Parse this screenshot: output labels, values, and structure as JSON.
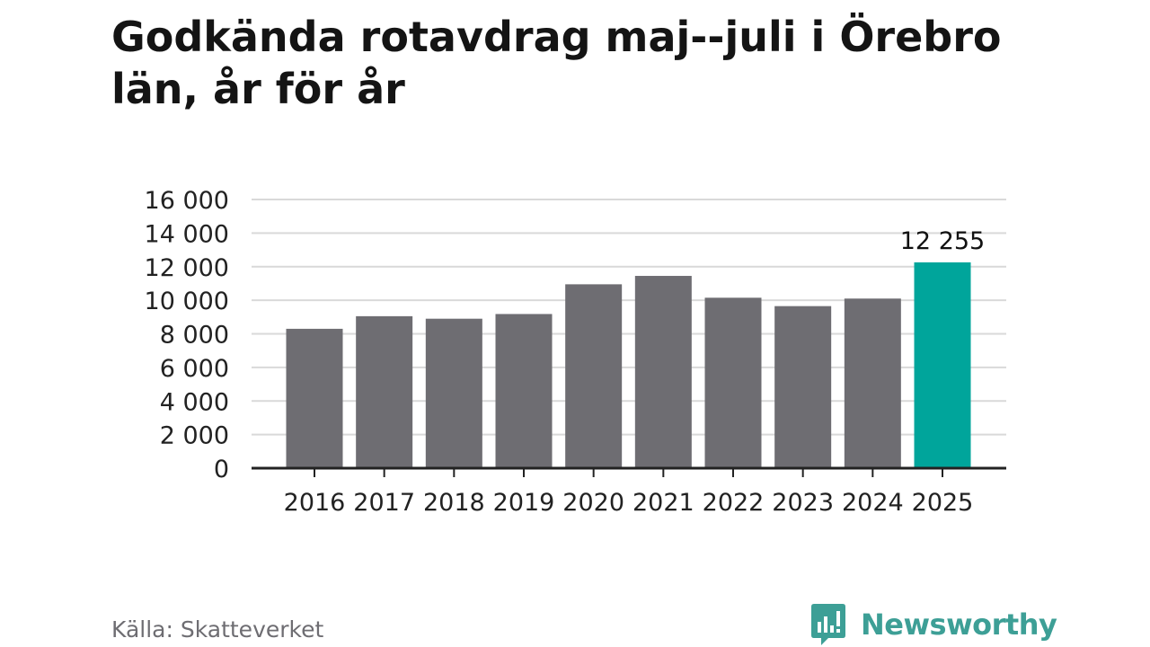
{
  "title": "Godkända rotavdrag maj--juli i Örebro län, år för år",
  "source": "Källa: Skatteverket",
  "brand": {
    "name": "Newsworthy",
    "color": "#3d9f96"
  },
  "colors": {
    "bar": "#6e6d72",
    "highlight": "#00a59b",
    "grid": "#d9d9d9",
    "axis": "#222222"
  },
  "chart_data": {
    "type": "bar",
    "categories": [
      "2016",
      "2017",
      "2018",
      "2019",
      "2020",
      "2021",
      "2022",
      "2023",
      "2024",
      "2025"
    ],
    "values": [
      8300,
      9050,
      8900,
      9180,
      10950,
      11450,
      10150,
      9650,
      10100,
      12255
    ],
    "highlight_index": 9,
    "data_labels": [
      {
        "index": 9,
        "text": "12 255"
      }
    ],
    "yticks": [
      0,
      2000,
      4000,
      6000,
      8000,
      10000,
      12000,
      14000,
      16000
    ],
    "ytick_labels": [
      "0",
      "2 000",
      "4 000",
      "6 000",
      "8 000",
      "10 000",
      "12 000",
      "14 000",
      "16 000"
    ],
    "ylim": [
      0,
      16000
    ],
    "grid": true,
    "xlabel": "",
    "ylabel": ""
  }
}
